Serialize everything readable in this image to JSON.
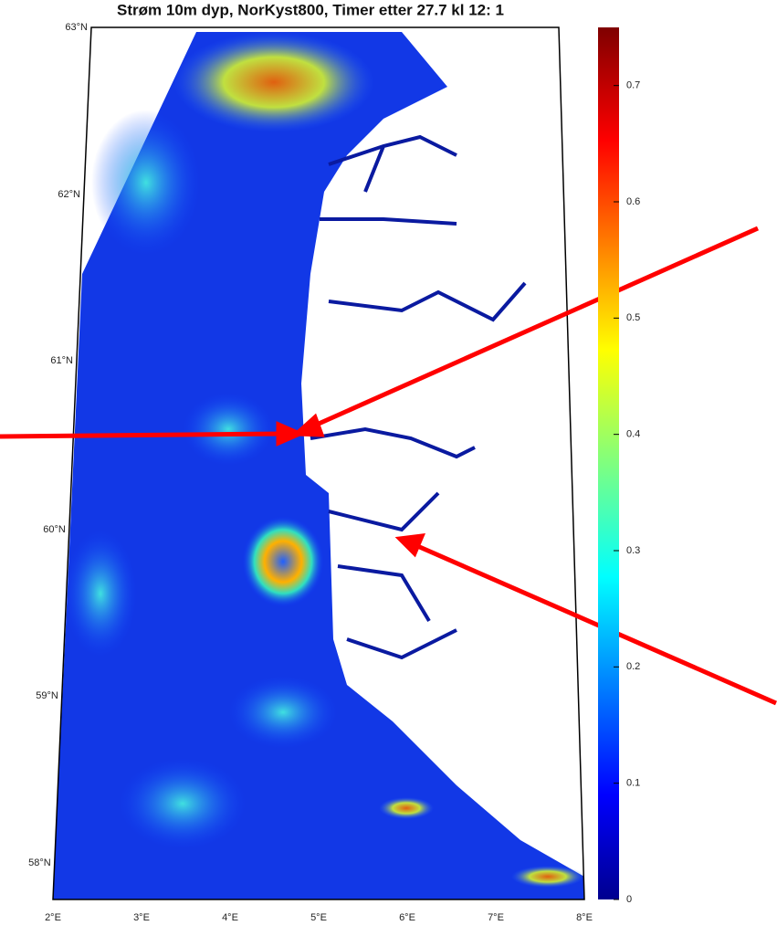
{
  "title": "Strøm 10m dyp, NorKyst800, Timer etter 27.7 kl 12: 1",
  "lat_labels": [
    "63°N",
    "62°N",
    "61°N",
    "60°N",
    "59°N",
    "58°N"
  ],
  "lon_labels": [
    "2°E",
    "3°E",
    "4°E",
    "5°E",
    "6°E",
    "7°E",
    "8°E"
  ],
  "colorbar": {
    "ylim": [
      0,
      0.75
    ],
    "yticks": [
      0,
      0.1,
      0.2,
      0.3,
      0.4,
      0.5,
      0.6,
      0.7
    ]
  }
}
